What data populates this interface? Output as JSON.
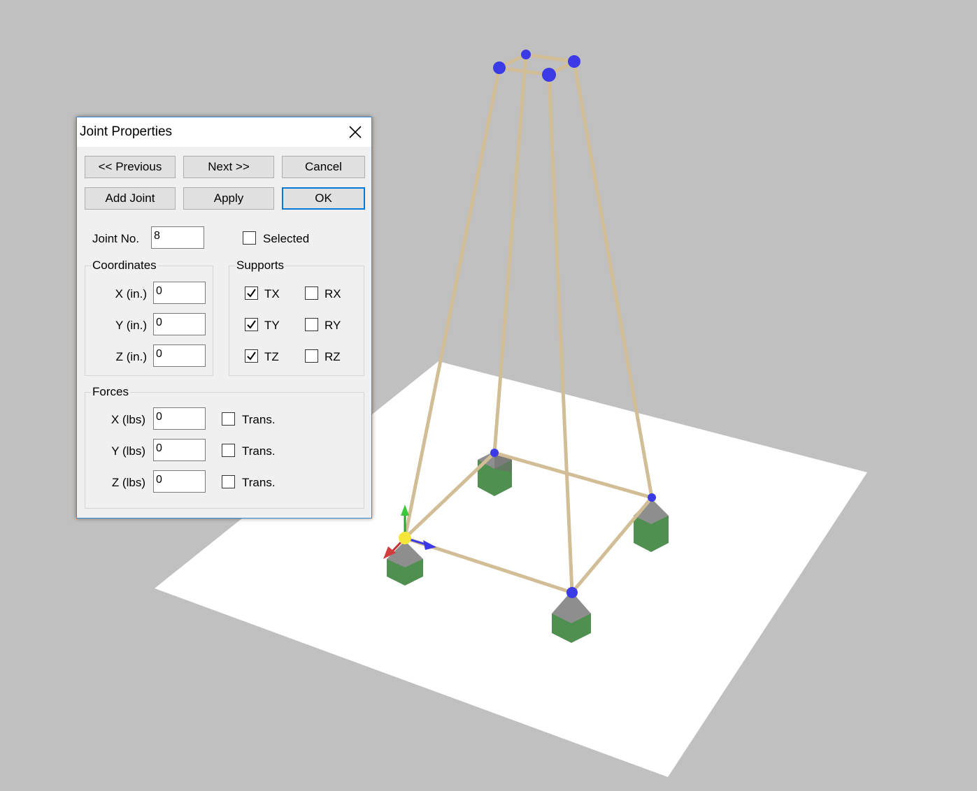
{
  "dialog": {
    "title": "Joint Properties",
    "buttons": {
      "previous": "<< Previous",
      "next": "Next >>",
      "cancel": "Cancel",
      "add_joint": "Add Joint",
      "apply": "Apply",
      "ok": "OK"
    },
    "joint_no": {
      "label": "Joint No.",
      "value": "8"
    },
    "selected": {
      "label": "Selected",
      "checked": false
    },
    "coordinates": {
      "title": "Coordinates",
      "x": {
        "label": "X (in.)",
        "value": "0"
      },
      "y": {
        "label": "Y (in.)",
        "value": "0"
      },
      "z": {
        "label": "Z (in.)",
        "value": "0"
      }
    },
    "supports": {
      "title": "Supports",
      "tx": {
        "label": "TX",
        "checked": true
      },
      "ty": {
        "label": "TY",
        "checked": true
      },
      "tz": {
        "label": "TZ",
        "checked": true
      },
      "rx": {
        "label": "RX",
        "checked": false
      },
      "ry": {
        "label": "RY",
        "checked": false
      },
      "rz": {
        "label": "RZ",
        "checked": false
      }
    },
    "forces": {
      "title": "Forces",
      "x": {
        "label": "X (lbs)",
        "value": "0",
        "trans_label": "Trans.",
        "trans_checked": false
      },
      "y": {
        "label": "Y (lbs)",
        "value": "0",
        "trans_label": "Trans.",
        "trans_checked": false
      },
      "z": {
        "label": "Z (lbs)",
        "value": "0",
        "trans_label": "Trans.",
        "trans_checked": false
      }
    }
  },
  "viewport": {
    "background_color": "#c0c0c0",
    "ground_color": "#ffffff",
    "member_color": "#d2be96",
    "joint_color": "#3a3ae6",
    "selected_joint_color": "#f5e63c",
    "support_block_color": "#4a8a4a",
    "support_cap_color": "#8c8c8c"
  }
}
